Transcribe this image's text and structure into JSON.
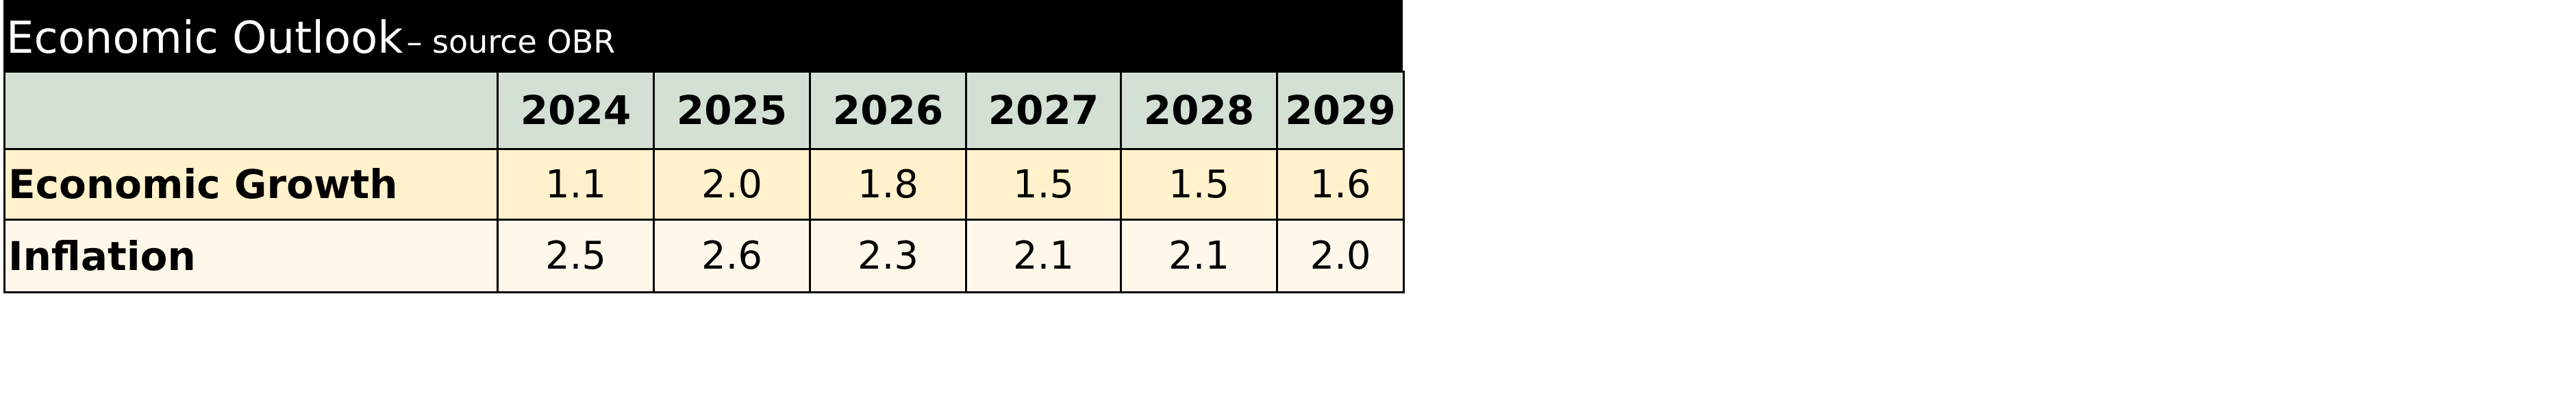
{
  "title": {
    "main": "Economic Outlook",
    "sub": "– source OBR"
  },
  "table": {
    "columns": [
      "2024",
      "2025",
      "2026",
      "2027",
      "2028",
      "2029"
    ],
    "rows": [
      [
        "Economic Growth",
        "1.1",
        "2.0",
        "1.8",
        "1.5",
        "1.5",
        "1.6"
      ],
      [
        "Inflation",
        "2.5",
        "2.6",
        "2.3",
        "2.1",
        "2.1",
        "2.0"
      ]
    ]
  }
}
